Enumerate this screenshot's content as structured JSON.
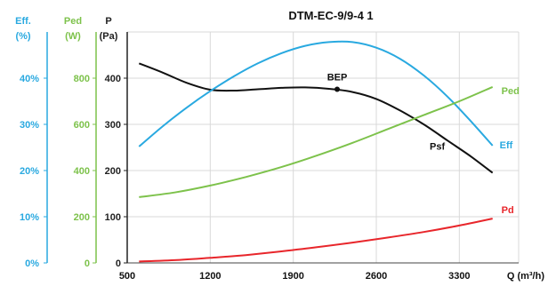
{
  "chart_data": {
    "type": "line",
    "title": "DTM-EC-9/9-4 1",
    "xlabel": "Q (m³/h)",
    "xlim": [
      500,
      3800
    ],
    "x_ticks": [
      "500",
      "1200",
      "1900",
      "2600",
      "3300"
    ],
    "x_tick_values": [
      500,
      1200,
      1900,
      2600,
      3300
    ],
    "axes": {
      "eff": {
        "label_line1": "Eff.",
        "label_line2": "(%)",
        "range": [
          0,
          50
        ],
        "ticks": [
          "0%",
          "10%",
          "20%",
          "30%",
          "40%"
        ],
        "tick_values": [
          0,
          10,
          20,
          30,
          40
        ],
        "color": "#29a9e0"
      },
      "ped": {
        "label_line1": "Ped",
        "label_line2": "(W)",
        "range": [
          0,
          1000
        ],
        "ticks": [
          "0",
          "200",
          "400",
          "600",
          "800"
        ],
        "tick_values": [
          0,
          200,
          400,
          600,
          800
        ],
        "color": "#7dc24b"
      },
      "p": {
        "label_line1": "P",
        "label_line2": "(Pa)",
        "range": [
          0,
          500
        ],
        "ticks": [
          "0",
          "100",
          "200",
          "300",
          "400"
        ],
        "tick_values": [
          0,
          100,
          200,
          300,
          400
        ],
        "color": "#222222"
      }
    },
    "grid": true,
    "series": [
      {
        "name": "Psf",
        "axis": "p",
        "color": "#111111",
        "x": [
          600,
          800,
          1000,
          1200,
          1400,
          1600,
          1800,
          2000,
          2200,
          2400,
          2600,
          2800,
          3000,
          3200,
          3400,
          3580
        ],
        "y": [
          432,
          412,
          390,
          375,
          373,
          376,
          379,
          380,
          377,
          370,
          355,
          330,
          300,
          265,
          230,
          195
        ]
      },
      {
        "name": "Eff",
        "axis": "eff",
        "color": "#29a9e0",
        "x": [
          600,
          800,
          1000,
          1200,
          1400,
          1600,
          1800,
          2000,
          2200,
          2400,
          2600,
          2800,
          3000,
          3200,
          3400,
          3580
        ],
        "y": [
          25.2,
          29.6,
          33.6,
          37.2,
          40.4,
          43.2,
          45.4,
          47.0,
          47.8,
          47.8,
          46.6,
          44.2,
          40.6,
          36.0,
          30.6,
          25.4
        ]
      },
      {
        "name": "Ped",
        "axis": "ped",
        "color": "#7dc24b",
        "x": [
          600,
          900,
          1200,
          1500,
          1800,
          2100,
          2400,
          2700,
          3000,
          3300,
          3580
        ],
        "y": [
          285,
          305,
          335,
          372,
          415,
          465,
          520,
          580,
          640,
          700,
          762
        ]
      },
      {
        "name": "Pd",
        "axis": "p",
        "color": "#e8262b",
        "x": [
          600,
          900,
          1200,
          1500,
          1800,
          2100,
          2400,
          2700,
          3000,
          3300,
          3580
        ],
        "y": [
          3,
          6,
          11,
          17,
          25,
          34,
          44,
          55,
          67,
          81,
          96
        ]
      }
    ],
    "annotations": [
      {
        "text": "BEP",
        "x": 2270,
        "y": 376,
        "axis": "p"
      }
    ]
  }
}
